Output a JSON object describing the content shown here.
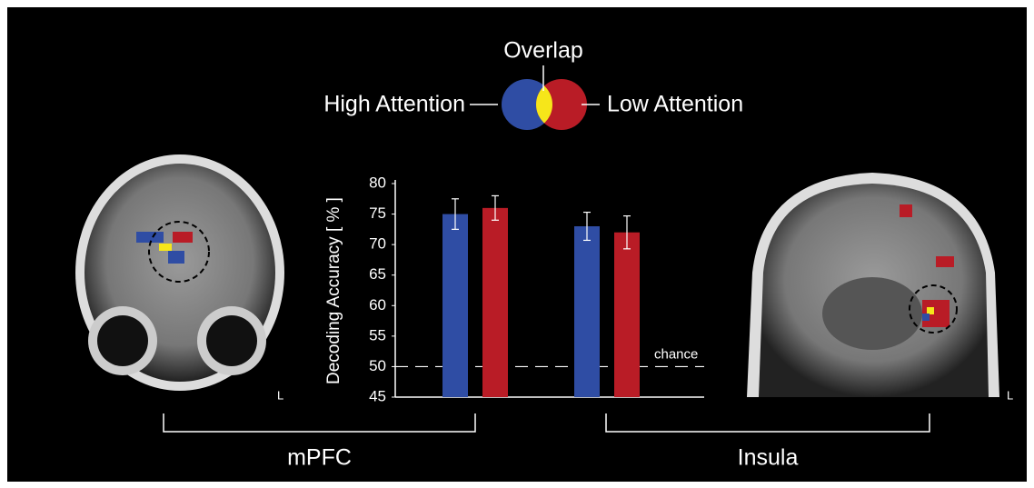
{
  "chart_data": {
    "type": "bar",
    "y_label": "Decoding Accuracy [ % ]",
    "categories": [
      "mPFC",
      "Insula"
    ],
    "series": [
      {
        "name": "High Attention",
        "color": "#2f4da4",
        "values": [
          75,
          73
        ],
        "errors": [
          2.5,
          2.3
        ]
      },
      {
        "name": "Low Attention",
        "color": "#b91c26",
        "values": [
          76,
          72
        ],
        "errors": [
          2,
          2.7
        ]
      }
    ],
    "overlap": {
      "name": "Overlap",
      "color": "#f6e61a"
    },
    "chance": {
      "value": 50,
      "label": "chance"
    },
    "ylim": [
      45,
      80
    ],
    "yticks": [
      45,
      50,
      55,
      60,
      65,
      70,
      75,
      80
    ]
  },
  "image_labels": [
    "L",
    "L"
  ]
}
